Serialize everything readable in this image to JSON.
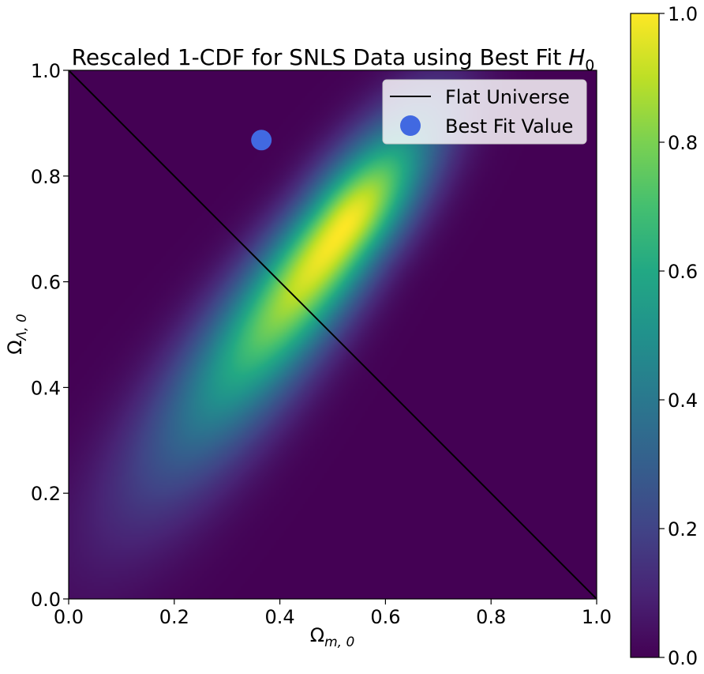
{
  "chart_data": {
    "type": "heatmap",
    "title_main": "Rescaled 1-CDF for SNLS Data using Best Fit ",
    "title_symbol": "H",
    "title_subscript": "0",
    "xlabel_symbol": "Ω",
    "xlabel_subscript": "m, 0",
    "ylabel_symbol": "Ω",
    "ylabel_subscript": "Λ, 0",
    "xlim": [
      0.0,
      1.0
    ],
    "ylim": [
      0.0,
      1.0
    ],
    "x_ticks": [
      "0.0",
      "0.2",
      "0.4",
      "0.6",
      "0.8",
      "1.0"
    ],
    "y_ticks": [
      "0.0",
      "0.2",
      "0.4",
      "0.6",
      "0.8",
      "1.0"
    ],
    "colorbar": {
      "colormap": "viridis",
      "range": [
        0.0,
        1.0
      ],
      "ticks": [
        "0.0",
        "0.2",
        "0.4",
        "0.6",
        "0.8",
        "1.0"
      ]
    },
    "heatmap_peak": {
      "x": 0.52,
      "y": 0.7
    },
    "lines": [
      {
        "name": "Flat Universe",
        "x": [
          0.0,
          1.0
        ],
        "y": [
          1.0,
          0.0
        ],
        "color": "#000000"
      }
    ],
    "points": [
      {
        "name": "Best Fit Value",
        "x": 0.365,
        "y": 0.868,
        "color": "#4169e1"
      }
    ],
    "legend": {
      "position": "top-right",
      "entries": [
        "Flat Universe",
        "Best Fit Value"
      ]
    },
    "grid": false
  }
}
